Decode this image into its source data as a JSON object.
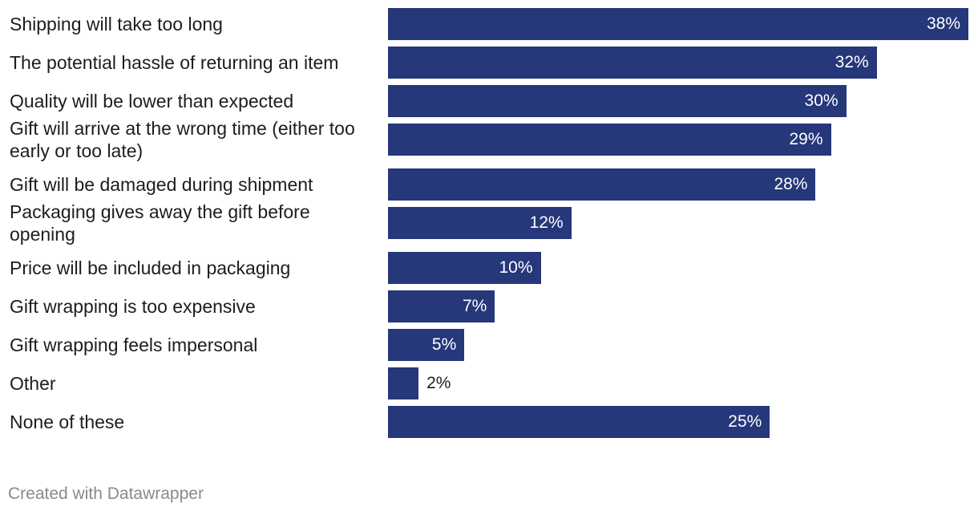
{
  "chart_data": {
    "type": "bar",
    "orientation": "horizontal",
    "categories": [
      "Shipping will take too long",
      "The potential hassle of returning an item",
      "Quality will be lower than expected",
      "Gift will arrive at the wrong time (either too early or too late)",
      "Gift will be damaged during shipment",
      "Packaging gives away the gift before opening",
      "Price will be included in packaging",
      "Gift wrapping is too expensive",
      "Gift wrapping feels impersonal",
      "Other",
      "None of these"
    ],
    "values": [
      38,
      32,
      30,
      29,
      28,
      12,
      10,
      7,
      5,
      2,
      25
    ],
    "value_labels": [
      "38%",
      "32%",
      "30%",
      "29%",
      "28%",
      "12%",
      "10%",
      "7%",
      "5%",
      "2%",
      "25%"
    ],
    "xlim": [
      0,
      38
    ],
    "bar_color": "#26377a",
    "title": "",
    "xlabel": "",
    "ylabel": ""
  },
  "footer": {
    "credit": "Created with Datawrapper"
  }
}
